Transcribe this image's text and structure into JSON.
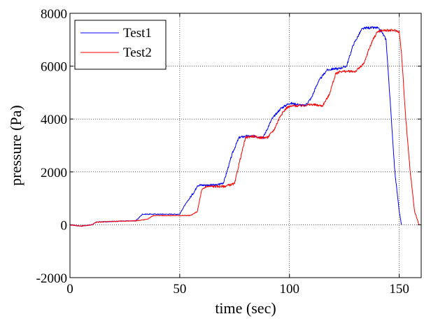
{
  "chart_data": {
    "type": "line",
    "xlabel": "time (sec)",
    "ylabel": "pressure (Pa)",
    "xlim": [
      0,
      160
    ],
    "ylim": [
      -2000,
      8000
    ],
    "xticks": [
      0,
      50,
      100,
      150
    ],
    "yticks": [
      -2000,
      0,
      2000,
      4000,
      6000,
      8000
    ],
    "xtick_labels": [
      "0",
      "50",
      "100",
      "150"
    ],
    "ytick_labels": [
      "-2000",
      "0",
      "2000",
      "4000",
      "6000",
      "8000"
    ],
    "grid": true,
    "legend_position": "top-left",
    "series": [
      {
        "name": "Test1",
        "color": "#0000ff",
        "x": [
          0,
          5,
          10,
          12,
          20,
          30,
          33,
          35,
          40,
          50,
          52,
          57,
          58,
          62,
          67,
          70,
          74,
          77,
          80,
          85,
          88,
          92,
          96,
          100,
          104,
          107,
          110,
          113,
          117,
          120,
          122,
          126,
          129,
          133,
          135,
          138,
          140,
          142,
          144,
          146,
          148,
          150,
          151
        ],
        "y": [
          0,
          -50,
          0,
          100,
          130,
          150,
          400,
          400,
          400,
          400,
          700,
          1300,
          1500,
          1500,
          1500,
          1600,
          2700,
          3300,
          3350,
          3350,
          3300,
          4000,
          4400,
          4600,
          4550,
          4500,
          4800,
          5400,
          5850,
          5900,
          5900,
          6000,
          6800,
          7400,
          7450,
          7450,
          7450,
          7300,
          7000,
          4500,
          2000,
          500,
          0
        ]
      },
      {
        "name": "Test2",
        "color": "#ff0000",
        "x": [
          0,
          5,
          10,
          12,
          20,
          30,
          35,
          38,
          44,
          50,
          55,
          58,
          60,
          62,
          65,
          70,
          75,
          77,
          80,
          83,
          86,
          90,
          93,
          96,
          99,
          102,
          105,
          110,
          115,
          118,
          121,
          123,
          127,
          130,
          134,
          136,
          138,
          140,
          142,
          144,
          146,
          148,
          150,
          151,
          153,
          155,
          157,
          159
        ],
        "y": [
          0,
          -50,
          0,
          100,
          130,
          150,
          200,
          350,
          350,
          350,
          350,
          500,
          1300,
          1450,
          1450,
          1450,
          1550,
          2300,
          3300,
          3350,
          3300,
          3300,
          3600,
          4150,
          4450,
          4500,
          4500,
          4550,
          4500,
          4900,
          5700,
          5800,
          5800,
          5800,
          6100,
          6600,
          7000,
          7300,
          7350,
          7350,
          7350,
          7350,
          7300,
          6500,
          4000,
          2000,
          500,
          0
        ]
      }
    ]
  }
}
